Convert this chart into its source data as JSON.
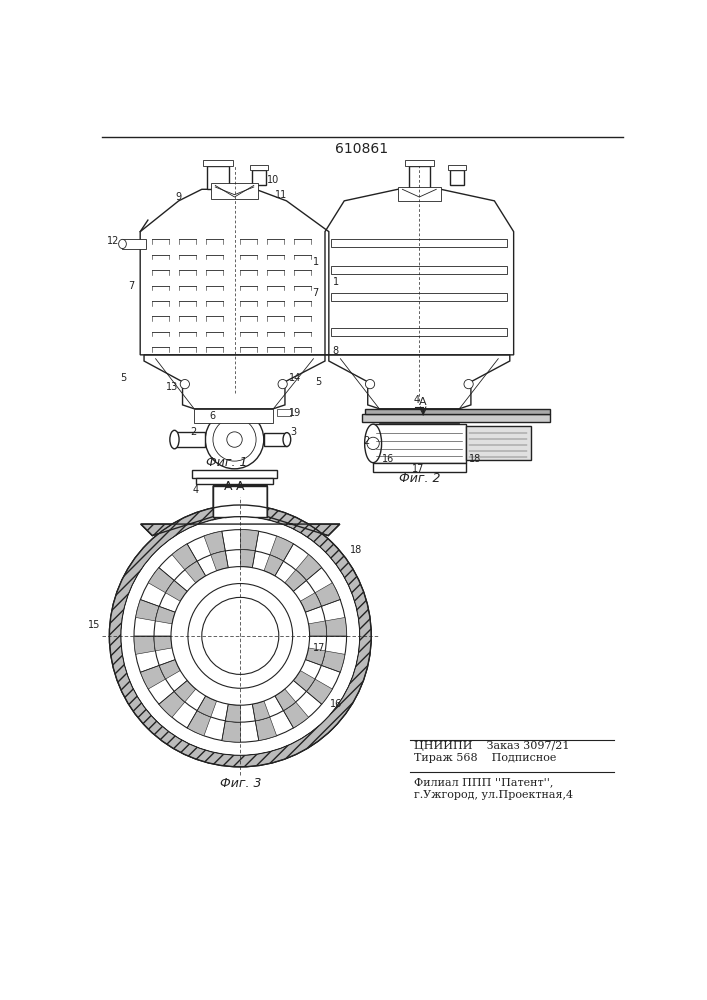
{
  "patent_number": "610861",
  "line_color": "#222222",
  "fig1_label": "Фиг. 1",
  "fig2_label": "Фиг. 2",
  "fig3_label": "Фиг. 3",
  "section_label": "А-А",
  "bottom_text1": "ЦНИИПИ    Заказ 3097/21",
  "bottom_text2": "Тираж 568    Подписное",
  "bottom_text3": "Филиал ППП ''Патент'',",
  "bottom_text4": "г.Ужгород, ул.Проектная,4"
}
